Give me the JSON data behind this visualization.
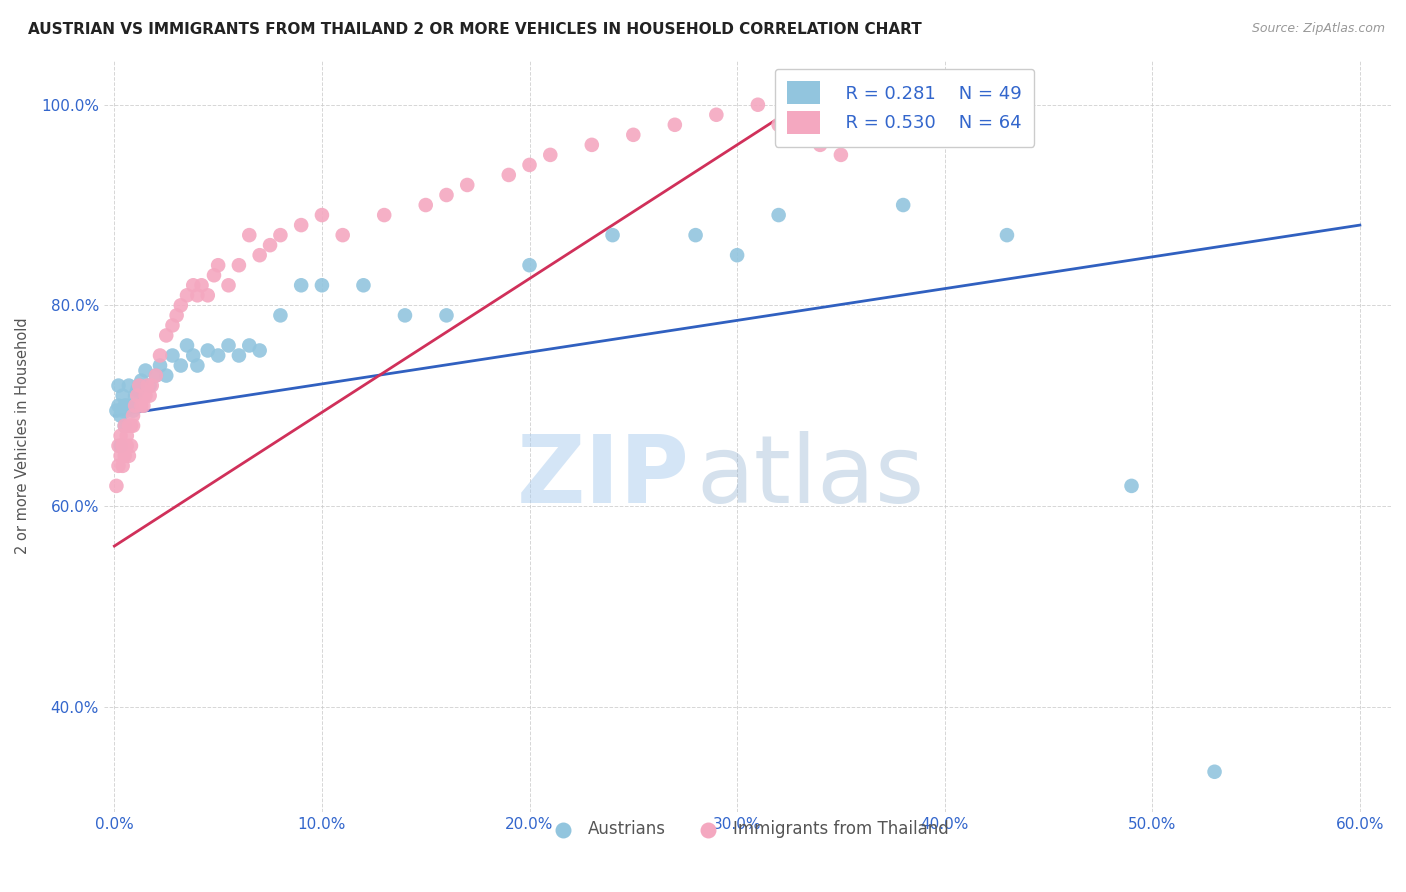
{
  "title": "AUSTRIAN VS IMMIGRANTS FROM THAILAND 2 OR MORE VEHICLES IN HOUSEHOLD CORRELATION CHART",
  "source": "Source: ZipAtlas.com",
  "ylabel": "2 or more Vehicles in Household",
  "color_austrians": "#92c5de",
  "color_thailand": "#f4a8c0",
  "line_color_austrians": "#3060c0",
  "line_color_thailand": "#d0305a",
  "watermark_zip": "ZIP",
  "watermark_atlas": "atlas",
  "legend_r_austrians": "R = 0.281",
  "legend_n_austrians": "N = 49",
  "legend_r_thailand": "R = 0.530",
  "legend_n_thailand": "N = 64",
  "austrians_x": [
    0.001,
    0.002,
    0.002,
    0.003,
    0.003,
    0.004,
    0.004,
    0.005,
    0.005,
    0.006,
    0.006,
    0.007,
    0.008,
    0.009,
    0.01,
    0.011,
    0.012,
    0.013,
    0.015,
    0.017,
    0.02,
    0.022,
    0.025,
    0.028,
    0.032,
    0.035,
    0.038,
    0.04,
    0.045,
    0.05,
    0.055,
    0.06,
    0.065,
    0.07,
    0.08,
    0.09,
    0.1,
    0.12,
    0.14,
    0.16,
    0.2,
    0.24,
    0.28,
    0.3,
    0.32,
    0.38,
    0.43,
    0.49,
    0.53
  ],
  "austrians_y": [
    0.695,
    0.7,
    0.72,
    0.66,
    0.69,
    0.695,
    0.71,
    0.68,
    0.7,
    0.695,
    0.7,
    0.72,
    0.7,
    0.695,
    0.71,
    0.715,
    0.72,
    0.725,
    0.735,
    0.72,
    0.73,
    0.74,
    0.73,
    0.75,
    0.74,
    0.76,
    0.75,
    0.74,
    0.755,
    0.75,
    0.76,
    0.75,
    0.76,
    0.755,
    0.79,
    0.82,
    0.82,
    0.82,
    0.79,
    0.79,
    0.84,
    0.87,
    0.87,
    0.85,
    0.89,
    0.9,
    0.87,
    0.62,
    0.335
  ],
  "thailand_x": [
    0.001,
    0.002,
    0.002,
    0.003,
    0.003,
    0.004,
    0.004,
    0.005,
    0.005,
    0.006,
    0.006,
    0.007,
    0.007,
    0.008,
    0.008,
    0.009,
    0.009,
    0.01,
    0.011,
    0.012,
    0.013,
    0.014,
    0.015,
    0.016,
    0.017,
    0.018,
    0.02,
    0.022,
    0.025,
    0.028,
    0.03,
    0.032,
    0.035,
    0.038,
    0.04,
    0.042,
    0.045,
    0.048,
    0.05,
    0.055,
    0.06,
    0.065,
    0.07,
    0.075,
    0.08,
    0.09,
    0.1,
    0.11,
    0.13,
    0.15,
    0.16,
    0.17,
    0.19,
    0.2,
    0.21,
    0.23,
    0.25,
    0.27,
    0.29,
    0.31,
    0.32,
    0.33,
    0.34,
    0.35
  ],
  "thailand_y": [
    0.62,
    0.64,
    0.66,
    0.65,
    0.67,
    0.64,
    0.66,
    0.65,
    0.68,
    0.66,
    0.67,
    0.65,
    0.68,
    0.66,
    0.68,
    0.68,
    0.69,
    0.7,
    0.71,
    0.72,
    0.7,
    0.7,
    0.71,
    0.72,
    0.71,
    0.72,
    0.73,
    0.75,
    0.77,
    0.78,
    0.79,
    0.8,
    0.81,
    0.82,
    0.81,
    0.82,
    0.81,
    0.83,
    0.84,
    0.82,
    0.84,
    0.87,
    0.85,
    0.86,
    0.87,
    0.88,
    0.89,
    0.87,
    0.89,
    0.9,
    0.91,
    0.92,
    0.93,
    0.94,
    0.95,
    0.96,
    0.97,
    0.98,
    0.99,
    1.0,
    0.98,
    0.97,
    0.96,
    0.95
  ],
  "xlim": [
    -0.005,
    0.615
  ],
  "ylim": [
    0.295,
    1.045
  ],
  "xtick_vals": [
    0.0,
    0.1,
    0.2,
    0.3,
    0.4,
    0.5,
    0.6
  ],
  "ytick_vals": [
    0.4,
    0.6,
    0.8,
    1.0
  ],
  "austrians_line_x": [
    0.0,
    0.6
  ],
  "austrians_line_y": [
    0.69,
    0.88
  ],
  "thailand_line_x": [
    0.0,
    0.33
  ],
  "thailand_line_y": [
    0.56,
    1.0
  ]
}
